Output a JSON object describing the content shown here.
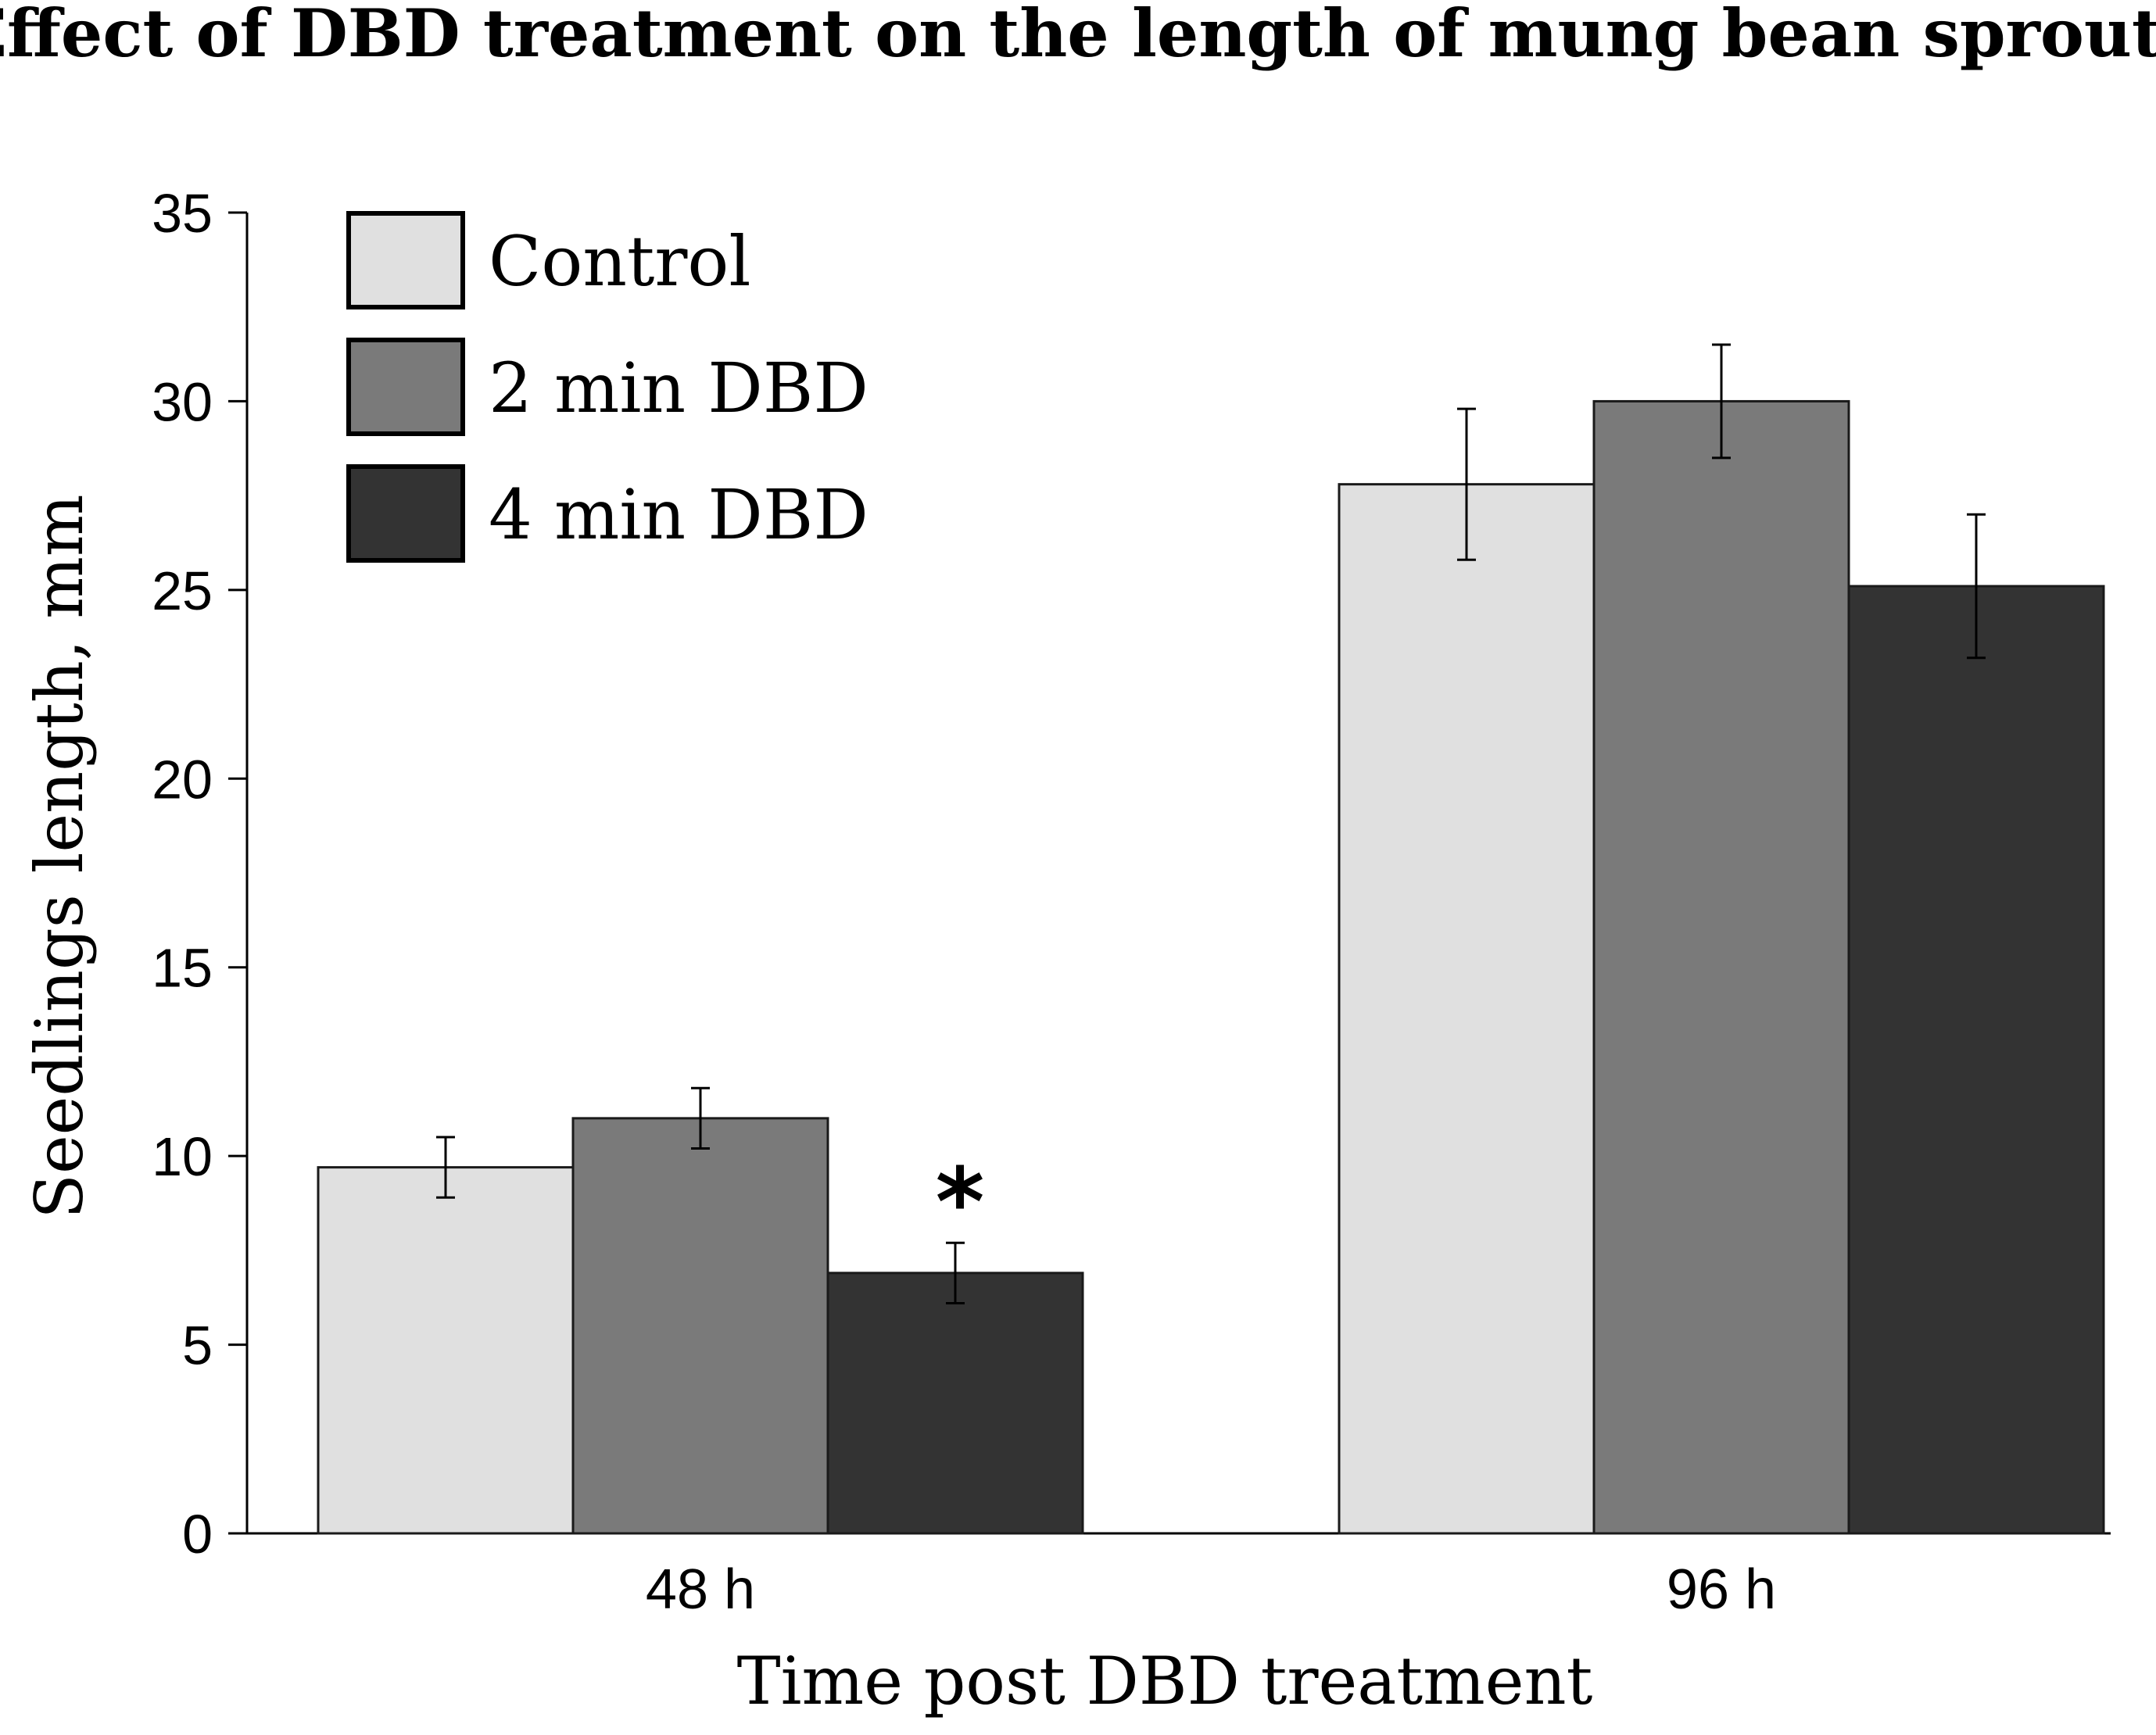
{
  "chart_data": {
    "type": "bar",
    "title": "Effect of DBD treatment on the length of mung bean sprouts",
    "xlabel": "Time post DBD treatment",
    "ylabel": "Seedlings length, mm",
    "ylim": [
      0,
      35
    ],
    "yticks": [
      0,
      5,
      10,
      15,
      20,
      25,
      30,
      35
    ],
    "ytick_labels": [
      "0",
      "5",
      "10",
      "15",
      "20",
      "25",
      "30",
      "35"
    ],
    "grid": false,
    "legend_position": "top-left",
    "categories": [
      "48 h",
      "96 h"
    ],
    "series": [
      {
        "name": "Control",
        "color": "#e0e0e0",
        "values": [
          9.7,
          27.8
        ],
        "errors": [
          0.8,
          2.0
        ]
      },
      {
        "name": "2 min DBD",
        "color": "#7a7a7a",
        "values": [
          11.0,
          30.0
        ],
        "errors": [
          0.8,
          1.5
        ]
      },
      {
        "name": "4 min DBD",
        "color": "#333333",
        "values": [
          6.9,
          25.1
        ],
        "errors": [
          0.8,
          1.9
        ]
      }
    ],
    "annotations": [
      {
        "text": "*",
        "category_index": 0,
        "series_index": 2
      }
    ]
  }
}
